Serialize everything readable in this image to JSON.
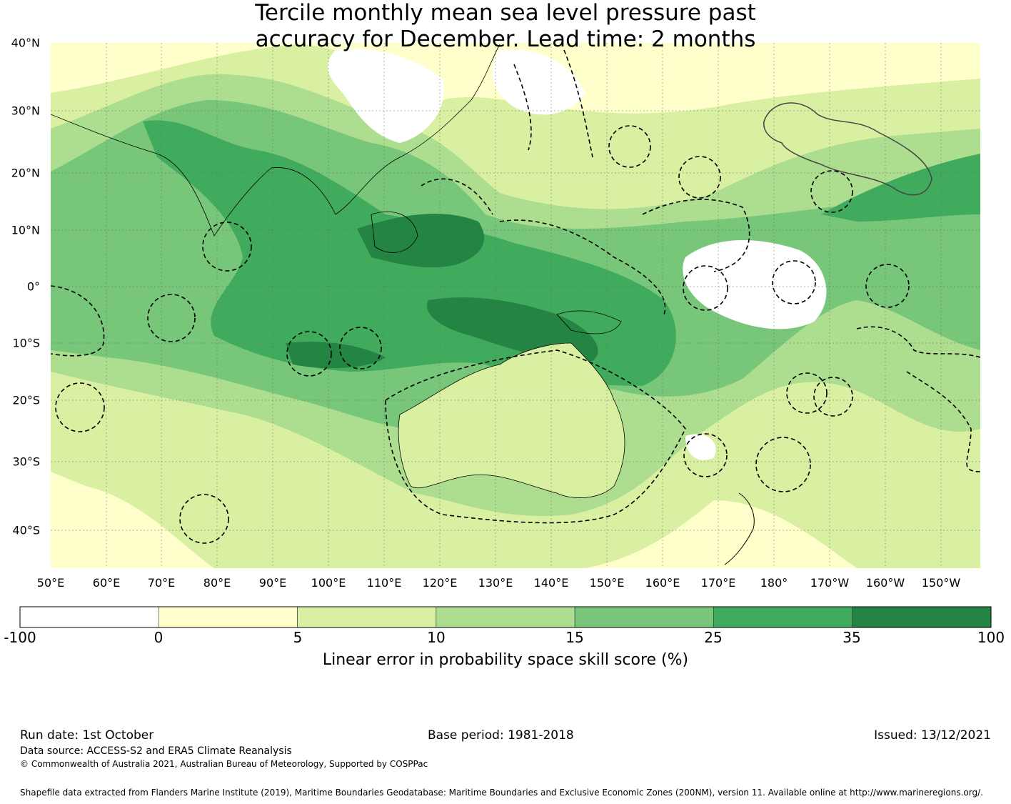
{
  "title": {
    "line1": "Tercile monthly mean sea level pressure past",
    "line2": "accuracy for December. Lead time: 2 months"
  },
  "map": {
    "lat_labels": [
      "40°N",
      "30°N",
      "20°N",
      "10°N",
      "0°",
      "10°S",
      "20°S",
      "30°S",
      "40°S"
    ],
    "lon_labels": [
      "50°E",
      "60°E",
      "70°E",
      "80°E",
      "90°E",
      "100°E",
      "110°E",
      "120°E",
      "130°E",
      "140°E",
      "150°E",
      "160°E",
      "170°E",
      "180°",
      "170°W",
      "160°W",
      "150°W"
    ],
    "colors": {
      "ocean_base": "#c9e7a0",
      "land": "#d8f0a8"
    }
  },
  "colorbar": {
    "ticks": [
      "-100",
      "0",
      "5",
      "10",
      "15",
      "25",
      "35",
      "100"
    ],
    "colors": [
      "#ffffff",
      "#ffffcc",
      "#d9f0a3",
      "#addd8e",
      "#78c679",
      "#41ab5d",
      "#238443"
    ],
    "label": "Linear error in probability space skill score (%)"
  },
  "chart_data": {
    "type": "heatmap",
    "title": "Tercile monthly mean sea level pressure past accuracy for December. Lead time: 2 months",
    "colorbar_label": "Linear error in probability space skill score (%)",
    "bins": [
      {
        "range": [
          -100,
          0
        ],
        "color": "#ffffff"
      },
      {
        "range": [
          0,
          5
        ],
        "color": "#ffffcc"
      },
      {
        "range": [
          5,
          10
        ],
        "color": "#d9f0a3"
      },
      {
        "range": [
          10,
          15
        ],
        "color": "#addd8e"
      },
      {
        "range": [
          15,
          25
        ],
        "color": "#78c679"
      },
      {
        "range": [
          25,
          35
        ],
        "color": "#41ab5d"
      },
      {
        "range": [
          35,
          100
        ],
        "color": "#238443"
      }
    ]
  },
  "footer": {
    "run_date": "Run date: 1st October",
    "base_period": "Base period: 1981-2018",
    "issued": "Issued: 13/12/2021",
    "data_source": "Data source: ACCESS-S2 and ERA5 Climate Reanalysis",
    "copyright": "© Commonwealth of Australia 2021, Australian Bureau of Meteorology, Supported by COSPPac",
    "shapefile": "Shapefile data extracted from Flanders Marine Institute (2019), Maritime Boundaries Geodatabase: Maritime Boundaries and Exclusive Economic Zones (200NM), version 11. Available online at http://www.marineregions.org/."
  }
}
